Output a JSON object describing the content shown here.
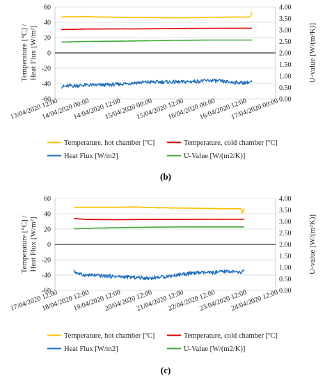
{
  "colors": {
    "hot": "#FFC000",
    "cold": "#E00000",
    "flux": "#1E6FC0",
    "uvalue": "#3DAA35",
    "grid": "#D9D9D9",
    "axis": "#000000"
  },
  "chart_data": [
    {
      "type": "line",
      "panel_label": "(b)",
      "ylabel": "Temperature [°C] / Heat Flux [W/m²]",
      "y2label": "U-value [W/(m²K)]",
      "ylim": [
        -60,
        60
      ],
      "y2lim": [
        0.0,
        4.0
      ],
      "yticks": [
        "60",
        "40",
        "20",
        "0",
        "-20",
        "-40",
        "-60"
      ],
      "y2ticks": [
        "4.00",
        "3.50",
        "3.00",
        "2.50",
        "2.00",
        "1.50",
        "1.00",
        "0.50",
        "0.00"
      ],
      "xticks": [
        "13/04/2020 12:00",
        "14/04/2020 00:00",
        "14/04/2020 12:00",
        "15/04/2020 00:00",
        "15/04/2020 12:00",
        "16/04/2020 00:00",
        "16/04/2020 12:00",
        "17/04/2020 00:00"
      ],
      "x_range_ticks": [
        0,
        7
      ],
      "grid": "horizontal",
      "legend_position": "bottom",
      "series": [
        {
          "name": "Temperature, hot chamber [ºC]",
          "key": "hot",
          "axis": "left",
          "x": [
            0.2,
            1.0,
            2.0,
            3.0,
            4.0,
            5.0,
            6.0,
            6.2,
            6.25
          ],
          "values": [
            47,
            47.5,
            46.5,
            46.2,
            45.8,
            46.5,
            46.8,
            47,
            53
          ]
        },
        {
          "name": "Temperature, cold chamber [ºC]",
          "key": "cold",
          "axis": "left",
          "x": [
            0.2,
            0.5,
            1.0,
            2.0,
            3.0,
            4.0,
            5.0,
            6.0,
            6.25
          ],
          "values": [
            30.5,
            30.7,
            31.2,
            31.3,
            31.5,
            32,
            32.2,
            32.3,
            32.3
          ]
        },
        {
          "name": "Heat Flux [W/m2]",
          "key": "flux",
          "axis": "left",
          "x": [
            0.2,
            0.5,
            1.0,
            1.5,
            2.0,
            2.5,
            3.0,
            3.5,
            4.0,
            4.5,
            5.0,
            5.5,
            6.0,
            6.25
          ],
          "values": [
            -44,
            -43,
            -42,
            -42,
            -41,
            -39,
            -38,
            -38,
            -38,
            -37,
            -36,
            -38,
            -39,
            -38
          ]
        },
        {
          "name": "U-Value [W/(m2/K)]",
          "key": "uvalue",
          "axis": "right",
          "x": [
            0.2,
            1.0,
            2.0,
            3.0,
            4.0,
            5.0,
            6.0,
            6.25
          ],
          "values": [
            2.47,
            2.5,
            2.51,
            2.53,
            2.55,
            2.56,
            2.56,
            2.56
          ]
        }
      ]
    },
    {
      "type": "line",
      "panel_label": "(c)",
      "ylabel": "Temperature [°C] / Heat Flux [W/m²]",
      "y2label": "U-value [W/(m²K)]",
      "ylim": [
        -60,
        60
      ],
      "y2lim": [
        0.0,
        4.0
      ],
      "yticks": [
        "60",
        "40",
        "20",
        "0",
        "-20",
        "-40",
        "-60"
      ],
      "y2ticks": [
        "4.00",
        "3.50",
        "3.00",
        "2.50",
        "2.00",
        "1.50",
        "1.00",
        "0.50",
        "0.00"
      ],
      "xticks": [
        "17/04/2020 12:00",
        "18/04/2020 12:00",
        "19/04/2020 12:00",
        "20/04/2020 12:00",
        "21/04/2020 12:00",
        "22/04/2020 12:00",
        "23/04/2020 12:00",
        "24/04/2020 12:00"
      ],
      "x_range_ticks": [
        0,
        7
      ],
      "grid": "horizontal",
      "legend_position": "bottom",
      "series": [
        {
          "name": "Temperature, hot chamber [ºC]",
          "key": "hot",
          "axis": "left",
          "x": [
            0.6,
            1.0,
            2.0,
            2.5,
            3.0,
            4.0,
            5.0,
            5.9,
            5.95,
            6.0
          ],
          "values": [
            48,
            48.5,
            48.5,
            49,
            48,
            47.5,
            46.8,
            46.5,
            41,
            47
          ]
        },
        {
          "name": "Temperature, cold chamber [ºC]",
          "key": "cold",
          "axis": "left",
          "x": [
            0.6,
            0.8,
            1.0,
            2.0,
            3.0,
            4.0,
            5.0,
            6.0
          ],
          "values": [
            34,
            33.2,
            32.5,
            32.3,
            32.5,
            32.6,
            32.8,
            32.8
          ]
        },
        {
          "name": "Heat Flux [W/m2]",
          "key": "flux",
          "axis": "left",
          "x": [
            0.6,
            0.8,
            1.0,
            1.5,
            2.0,
            2.5,
            3.0,
            3.5,
            4.0,
            4.5,
            5.0,
            5.5,
            5.9,
            6.0
          ],
          "values": [
            -35,
            -39,
            -40,
            -41,
            -42,
            -43,
            -44,
            -42,
            -39,
            -37,
            -37,
            -35,
            -37,
            -34
          ]
        },
        {
          "name": "U-Value [W/(m2/K)]",
          "key": "uvalue",
          "axis": "right",
          "x": [
            0.6,
            1.0,
            2.0,
            3.0,
            4.0,
            5.0,
            6.0
          ],
          "values": [
            2.68,
            2.7,
            2.73,
            2.75,
            2.76,
            2.76,
            2.76
          ]
        }
      ]
    }
  ]
}
